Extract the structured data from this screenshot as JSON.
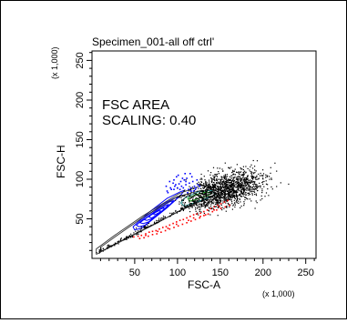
{
  "chart_data": {
    "type": "scatter",
    "title": "Specimen_001-all off ctrl'",
    "xlabel": "FSC-A",
    "ylabel": "FSC-H",
    "x_multiplier": "(x 1,000)",
    "y_multiplier": "(x 1,000)",
    "xlim": [
      0,
      262
    ],
    "ylim": [
      0,
      262
    ],
    "x_ticks": [
      50,
      100,
      150,
      200,
      250
    ],
    "y_ticks": [
      50,
      100,
      150,
      200,
      250
    ],
    "grid": false,
    "annotation": [
      "FSC AREA",
      "SCALING: 0.40"
    ],
    "colors": {
      "events": "#000000",
      "contour_blue": "#0000ff",
      "contour_teal": "#008080",
      "contour_green": "#00a000",
      "outlier_blue": "#0000ff",
      "outlier_red": "#ff0000",
      "outer_contour": "#333333"
    },
    "series": [
      {
        "style": "blue-contours",
        "contours": [
          [
            [
              58,
              38
            ],
            [
              88,
              64
            ],
            [
              104,
              80
            ],
            [
              108,
              86
            ],
            [
              103,
              84
            ],
            [
              88,
              76
            ],
            [
              64,
              56
            ],
            [
              48,
              40
            ],
            [
              50,
              36
            ],
            [
              58,
              38
            ]
          ],
          [
            [
              62,
              42
            ],
            [
              85,
              62
            ],
            [
              98,
              74
            ],
            [
              101,
              78
            ],
            [
              96,
              76
            ],
            [
              82,
              68
            ],
            [
              62,
              52
            ],
            [
              52,
              42
            ],
            [
              55,
              40
            ],
            [
              62,
              42
            ]
          ],
          [
            [
              66,
              46
            ],
            [
              83,
              60
            ],
            [
              93,
              70
            ],
            [
              95,
              73
            ],
            [
              90,
              71
            ],
            [
              78,
              63
            ],
            [
              62,
              50
            ],
            [
              56,
              45
            ],
            [
              60,
              44
            ],
            [
              66,
              46
            ]
          ],
          [
            [
              70,
              50
            ],
            [
              81,
              59
            ],
            [
              88,
              66
            ],
            [
              89,
              68
            ],
            [
              85,
              66
            ],
            [
              76,
              60
            ],
            [
              65,
              52
            ],
            [
              61,
              49
            ],
            [
              64,
              48
            ],
            [
              70,
              50
            ]
          ],
          [
            [
              73,
              53
            ],
            [
              80,
              58
            ],
            [
              84,
              62
            ],
            [
              84,
              64
            ],
            [
              80,
              62
            ],
            [
              74,
              58
            ],
            [
              68,
              54
            ],
            [
              67,
              52
            ],
            [
              70,
              51
            ],
            [
              73,
              53
            ]
          ],
          [
            [
              75,
              56
            ],
            [
              79,
              58
            ],
            [
              80,
              60
            ],
            [
              78,
              60
            ],
            [
              74,
              58
            ],
            [
              72,
              56
            ],
            [
              73,
              55
            ],
            [
              75,
              56
            ]
          ]
        ]
      },
      {
        "style": "outer-contours",
        "contours": [
          [
            [
              5,
              5
            ],
            [
              30,
              20
            ],
            [
              70,
              42
            ],
            [
              110,
              64
            ],
            [
              140,
              78
            ],
            [
              148,
              84
            ],
            [
              128,
              92
            ],
            [
              102,
              82
            ],
            [
              60,
              54
            ],
            [
              25,
              28
            ],
            [
              5,
              12
            ],
            [
              5,
              5
            ]
          ],
          [
            [
              10,
              8
            ],
            [
              35,
              22
            ],
            [
              75,
              44
            ],
            [
              112,
              66
            ],
            [
              138,
              78
            ],
            [
              128,
              86
            ],
            [
              100,
              78
            ],
            [
              60,
              52
            ],
            [
              28,
              28
            ],
            [
              10,
              14
            ],
            [
              10,
              8
            ]
          ]
        ]
      },
      {
        "style": "teal-contour",
        "contours": [
          [
            [
              108,
              66
            ],
            [
              130,
              74
            ],
            [
              144,
              80
            ],
            [
              140,
              86
            ],
            [
              124,
              84
            ],
            [
              108,
              76
            ],
            [
              104,
              70
            ],
            [
              108,
              66
            ]
          ]
        ]
      },
      {
        "style": "green-contour",
        "contours": [
          [
            [
              114,
              72
            ],
            [
              132,
              78
            ],
            [
              140,
              82
            ],
            [
              134,
              84
            ],
            [
              120,
              80
            ],
            [
              112,
              76
            ],
            [
              114,
              72
            ]
          ]
        ]
      },
      {
        "style": "events",
        "center": [
          155,
          87
        ],
        "spread": [
          40,
          18
        ],
        "slope": 0.3,
        "count": 1500,
        "x_range": [
          95,
          262
        ],
        "y_range": [
          55,
          140
        ]
      },
      {
        "style": "events-diagonal",
        "from": [
          6,
          8
        ],
        "to": [
          120,
          72
        ],
        "width": 6,
        "count": 160
      },
      {
        "style": "outliers-blue",
        "points": [
          [
            86,
            92
          ],
          [
            90,
            98
          ],
          [
            95,
            100
          ],
          [
            98,
            104
          ],
          [
            101,
            95
          ],
          [
            104,
            92
          ],
          [
            107,
            100
          ],
          [
            109,
            94
          ],
          [
            110,
            102
          ],
          [
            113,
            96
          ],
          [
            115,
            90
          ],
          [
            117,
            98
          ],
          [
            120,
            88
          ],
          [
            123,
            94
          ],
          [
            118,
            86
          ],
          [
            112,
            88
          ],
          [
            106,
            90
          ],
          [
            102,
            88
          ],
          [
            96,
            92
          ],
          [
            92,
            88
          ],
          [
            88,
            84
          ],
          [
            100,
            106
          ],
          [
            116,
            104
          ],
          [
            122,
            100
          ],
          [
            108,
            108
          ],
          [
            94,
            96
          ],
          [
            99,
            90
          ],
          [
            111,
            84
          ],
          [
            119,
            92
          ],
          [
            103,
            98
          ],
          [
            114,
            108
          ],
          [
            91,
            90
          ],
          [
            87,
            86
          ],
          [
            121,
            90
          ],
          [
            125,
            92
          ],
          [
            97,
            94
          ],
          [
            105,
            102
          ],
          [
            115,
            86
          ],
          [
            109,
            98
          ],
          [
            95,
            88
          ]
        ]
      },
      {
        "style": "outliers-red",
        "points": [
          [
            48,
            28
          ],
          [
            53,
            29
          ],
          [
            57,
            30
          ],
          [
            62,
            32
          ],
          [
            66,
            34
          ],
          [
            70,
            35
          ],
          [
            74,
            36
          ],
          [
            78,
            38
          ],
          [
            82,
            40
          ],
          [
            86,
            41
          ],
          [
            90,
            43
          ],
          [
            94,
            45
          ],
          [
            98,
            47
          ],
          [
            102,
            49
          ],
          [
            106,
            50
          ],
          [
            110,
            52
          ],
          [
            114,
            54
          ],
          [
            118,
            56
          ],
          [
            122,
            57
          ],
          [
            126,
            58
          ],
          [
            130,
            60
          ],
          [
            134,
            62
          ],
          [
            138,
            64
          ],
          [
            142,
            66
          ],
          [
            146,
            68
          ],
          [
            150,
            70
          ],
          [
            154,
            72
          ],
          [
            158,
            74
          ],
          [
            55,
            26
          ],
          [
            60,
            27
          ],
          [
            65,
            29
          ],
          [
            70,
            31
          ],
          [
            75,
            32
          ],
          [
            80,
            34
          ],
          [
            85,
            36
          ],
          [
            90,
            38
          ],
          [
            95,
            40
          ],
          [
            100,
            42
          ],
          [
            105,
            44
          ],
          [
            110,
            46
          ],
          [
            115,
            48
          ],
          [
            120,
            50
          ],
          [
            125,
            52
          ],
          [
            130,
            55
          ],
          [
            135,
            57
          ],
          [
            140,
            60
          ],
          [
            145,
            62
          ],
          [
            150,
            64
          ],
          [
            155,
            66
          ],
          [
            160,
            68
          ],
          [
            88,
            39
          ],
          [
            112,
            49
          ],
          [
            132,
            56
          ],
          [
            148,
            66
          ],
          [
            118,
            52
          ],
          [
            98,
            44
          ],
          [
            76,
            35
          ],
          [
            62,
            30
          ],
          [
            126,
            54
          ],
          [
            142,
            62
          ]
        ]
      }
    ]
  }
}
